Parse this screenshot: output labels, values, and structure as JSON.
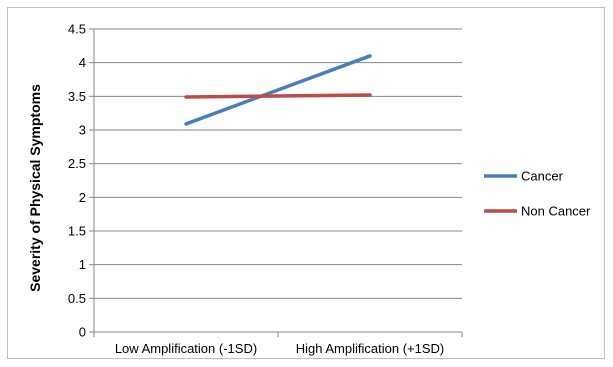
{
  "chart_data": {
    "type": "line",
    "title": "",
    "xlabel": "",
    "ylabel": "Severity of Physical Symptoms",
    "categories": [
      "Low Amplification (-1SD)",
      "High Amplification (+1SD)"
    ],
    "ylim": [
      0,
      4.5
    ],
    "yticks": [
      "0",
      "0.5",
      "1",
      "1.5",
      "2",
      "2.5",
      "3",
      "3.5",
      "4",
      "4.5"
    ],
    "grid": true,
    "legend_position": "right",
    "series": [
      {
        "name": "Cancer",
        "values": [
          3.09,
          4.1
        ],
        "color": "#4a7ebb"
      },
      {
        "name": "Non Cancer",
        "values": [
          3.49,
          3.52
        ],
        "color": "#be4b48"
      }
    ]
  }
}
